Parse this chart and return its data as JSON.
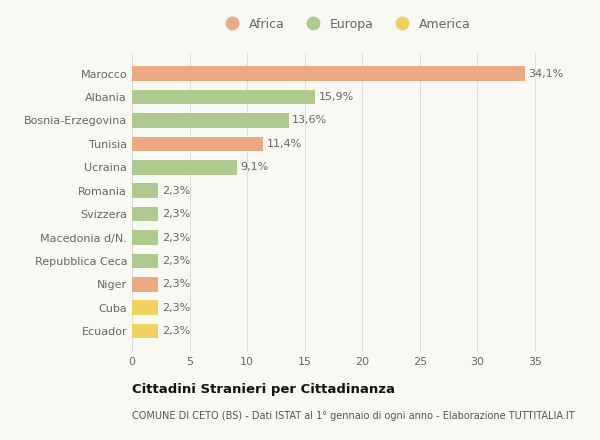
{
  "categories": [
    "Ecuador",
    "Cuba",
    "Niger",
    "Repubblica Ceca",
    "Macedonia d/N.",
    "Svizzera",
    "Romania",
    "Ucraina",
    "Tunisia",
    "Bosnia-Erzegovina",
    "Albania",
    "Marocco"
  ],
  "values": [
    2.3,
    2.3,
    2.3,
    2.3,
    2.3,
    2.3,
    2.3,
    9.1,
    11.4,
    13.6,
    15.9,
    34.1
  ],
  "continents": [
    "America",
    "America",
    "Africa",
    "Europa",
    "Europa",
    "Europa",
    "Europa",
    "Europa",
    "Africa",
    "Europa",
    "Europa",
    "Africa"
  ],
  "colors": {
    "Africa": "#EDAA82",
    "Europa": "#AECA8E",
    "America": "#F0D060"
  },
  "bar_labels": [
    "2,3%",
    "2,3%",
    "2,3%",
    "2,3%",
    "2,3%",
    "2,3%",
    "2,3%",
    "9,1%",
    "11,4%",
    "13,6%",
    "15,9%",
    "34,1%"
  ],
  "xlim": [
    0,
    37
  ],
  "xticks": [
    0,
    5,
    10,
    15,
    20,
    25,
    30,
    35
  ],
  "title": "Cittadini Stranieri per Cittadinanza",
  "subtitle": "COMUNE DI CETO (BS) - Dati ISTAT al 1° gennaio di ogni anno - Elaborazione TUTTITALIA.IT",
  "legend_labels": [
    "Africa",
    "Europa",
    "America"
  ],
  "legend_colors": [
    "#EDAA82",
    "#AECA8E",
    "#F0D060"
  ],
  "background_color": "#F9F9F3",
  "grid_color": "#DDDDDD",
  "label_color": "#666666",
  "title_color": "#111111",
  "subtitle_color": "#555555"
}
